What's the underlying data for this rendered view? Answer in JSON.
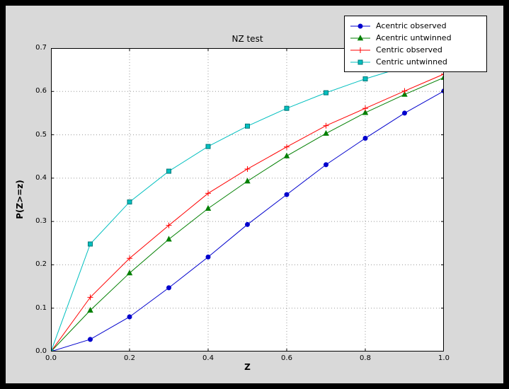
{
  "style": {
    "frame_color": "#000000",
    "figure_bg": "#d9d9d9",
    "plot_bg": "#ffffff",
    "grid_color": "#9a9a9a",
    "legend_bg": "#ffffff"
  },
  "chart_data": {
    "type": "line",
    "title": "NZ test",
    "xlabel": "Z",
    "ylabel": "P(Z>=z)",
    "xlim": [
      0.0,
      1.0
    ],
    "ylim": [
      0.0,
      0.7
    ],
    "xticks": [
      0.0,
      0.2,
      0.4,
      0.6,
      0.8,
      1.0
    ],
    "yticks": [
      0.0,
      0.1,
      0.2,
      0.3,
      0.4,
      0.5,
      0.6,
      0.7
    ],
    "grid": true,
    "grid_style": "dotted",
    "legend_position": "top-right",
    "x": [
      0.0,
      0.1,
      0.2,
      0.3,
      0.4,
      0.5,
      0.6,
      0.7,
      0.8,
      0.9,
      1.0
    ],
    "series": [
      {
        "name": "Acentric observed",
        "color": "#0000cd",
        "marker": "circle",
        "marker_fill": "#0000cd",
        "marker_edge": "#0000cd",
        "values": [
          0.0,
          0.028,
          0.08,
          0.147,
          0.218,
          0.293,
          0.362,
          0.431,
          0.492,
          0.55,
          0.601
        ]
      },
      {
        "name": "Acentric untwinned",
        "color": "#007f00",
        "marker": "triangle-up",
        "marker_fill": "#007f00",
        "marker_edge": "#007f00",
        "values": [
          0.0,
          0.095,
          0.181,
          0.259,
          0.33,
          0.393,
          0.451,
          0.503,
          0.551,
          0.593,
          0.632
        ]
      },
      {
        "name": "Centric observed",
        "color": "#ff0000",
        "marker": "plus",
        "marker_fill": "#ff0000",
        "marker_edge": "#ff0000",
        "values": [
          0.0,
          0.125,
          0.215,
          0.291,
          0.365,
          0.421,
          0.472,
          0.521,
          0.561,
          0.601,
          0.64
        ]
      },
      {
        "name": "Centric untwinned",
        "color": "#00bfbf",
        "marker": "square",
        "marker_fill": "#00bfbf",
        "marker_edge": "#007878",
        "values": [
          0.0,
          0.248,
          0.345,
          0.416,
          0.473,
          0.52,
          0.561,
          0.597,
          0.629,
          0.657,
          0.683
        ]
      }
    ]
  }
}
